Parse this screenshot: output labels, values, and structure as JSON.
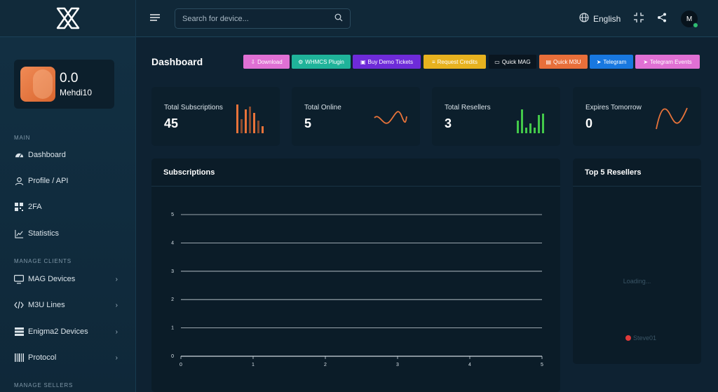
{
  "brand": {
    "logo_icon": "x-logo-icon"
  },
  "profile": {
    "balance": "0.0",
    "name": "Mehdi10"
  },
  "sidebar": {
    "sections": [
      "MAIN",
      "MANAGE CLIENTS",
      "MANAGE SELLERS"
    ],
    "items": [
      {
        "label": "Dashboard",
        "icon": "gauge-icon"
      },
      {
        "label": "Profile / API",
        "icon": "user-icon"
      },
      {
        "label": "2FA",
        "icon": "qr-icon"
      },
      {
        "label": "Statistics",
        "icon": "chart-line-icon"
      },
      {
        "label": "MAG Devices",
        "icon": "monitor-icon"
      },
      {
        "label": "M3U Lines",
        "icon": "code-icon"
      },
      {
        "label": "Enigma2 Devices",
        "icon": "server-icon"
      },
      {
        "label": "Protocol",
        "icon": "barcode-icon"
      }
    ]
  },
  "topbar": {
    "search_placeholder": "Search for device...",
    "language": "English",
    "user_initial": "M"
  },
  "dashboard": {
    "title": "Dashboard",
    "actions": [
      {
        "label": "Download",
        "color": "#e070d4"
      },
      {
        "label": "WHMCS Plugin",
        "color": "#1fb39a"
      },
      {
        "label": "Buy Demo Tickets",
        "color": "#6e2bd9"
      },
      {
        "label": "Request Credits",
        "color": "#e7b21f"
      },
      {
        "label": "Quick MAG",
        "color": "#0a1620"
      },
      {
        "label": "Quick M3U",
        "color": "#e86f3a"
      },
      {
        "label": "Telegram",
        "color": "#1878e0"
      },
      {
        "label": "Telegram Events",
        "color": "#e070d4"
      }
    ],
    "stats": [
      {
        "label": "Total Subscriptions",
        "value": "45",
        "accent": "#e8733a"
      },
      {
        "label": "Total Online",
        "value": "5",
        "accent": "#e8733a"
      },
      {
        "label": "Total Resellers",
        "value": "3",
        "accent": "#43c94a"
      },
      {
        "label": "Expires Tomorrow",
        "value": "0",
        "accent": "#e8733a"
      }
    ],
    "panels": {
      "subscriptions_title": "Subscriptions",
      "resellers_title": "Top 5 Resellers",
      "loading_text": "Loading...",
      "legend_label": "Steve01",
      "legend_color": "#e03a3a"
    }
  },
  "chart_data": {
    "type": "line",
    "x": [
      0,
      1,
      2,
      3,
      4,
      5
    ],
    "xlim": [
      0,
      5
    ],
    "ylim": [
      0,
      5
    ],
    "x_ticks": [
      "0",
      "1",
      "2",
      "3",
      "4",
      "5"
    ],
    "y_ticks": [
      "0",
      "1",
      "2",
      "3",
      "4",
      "5"
    ],
    "series": [],
    "grid": true
  }
}
